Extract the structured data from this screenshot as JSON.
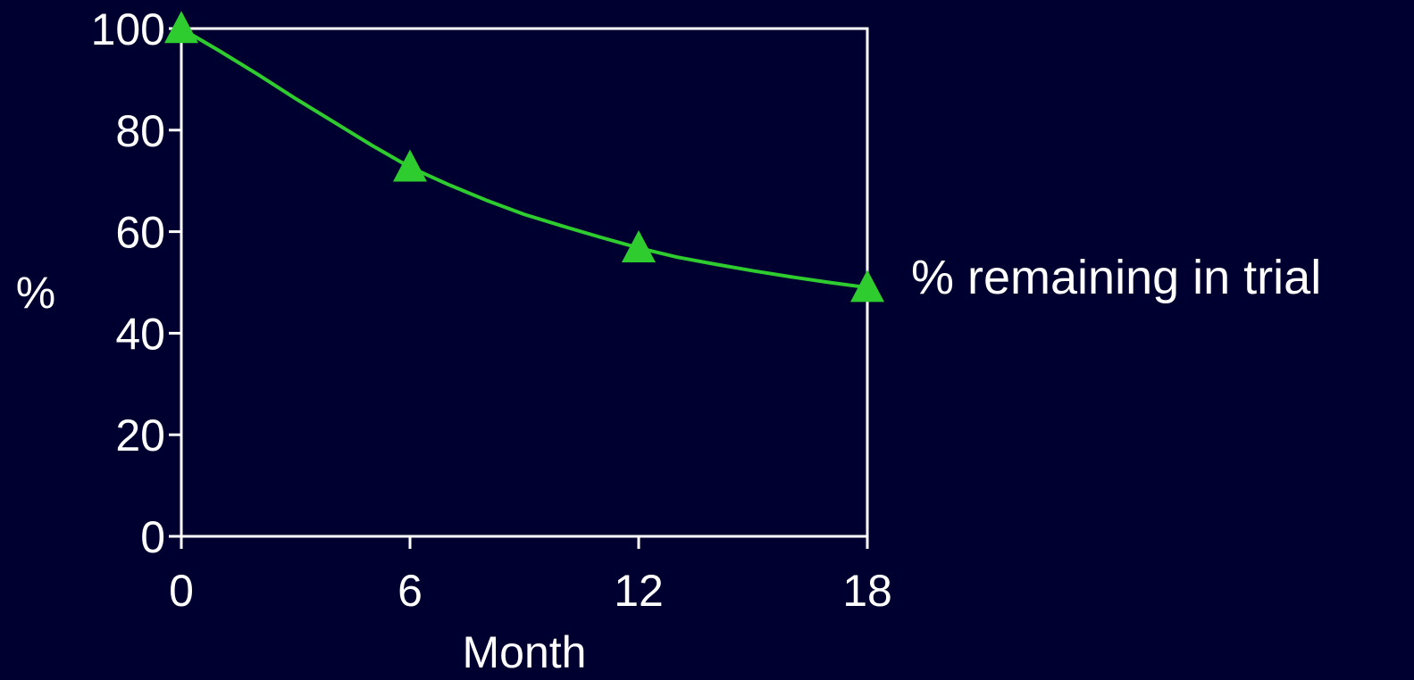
{
  "colors": {
    "background": "#000030",
    "axis": "#ffffff",
    "text": "#ffffff",
    "series": "#2ecc2e"
  },
  "chart_data": {
    "type": "line",
    "title": "",
    "xlabel": "Month",
    "ylabel": "%",
    "xlim": [
      0,
      18
    ],
    "ylim": [
      0,
      100
    ],
    "x_ticks": [
      "0",
      "6",
      "12",
      "18"
    ],
    "y_ticks": [
      "0",
      "20",
      "40",
      "60",
      "80",
      "100"
    ],
    "grid": false,
    "marker": "triangle-up-marker",
    "series": [
      {
        "name": "% remaining in trial",
        "curve_x": [
          0,
          1,
          2,
          3,
          4,
          5,
          6,
          7,
          8,
          9,
          10,
          11,
          12,
          13,
          14,
          15,
          16,
          17,
          18
        ],
        "curve_y": [
          100,
          95.6,
          91.0,
          86.2,
          81.6,
          77.0,
          72.7,
          69.3,
          66.2,
          63.4,
          61.1,
          58.9,
          56.8,
          55.0,
          53.6,
          52.3,
          51.1,
          50.0,
          49.0
        ],
        "marker_x": [
          0,
          6,
          12,
          18
        ],
        "marker_y": [
          100,
          72.7,
          56.8,
          49.0
        ]
      }
    ]
  }
}
